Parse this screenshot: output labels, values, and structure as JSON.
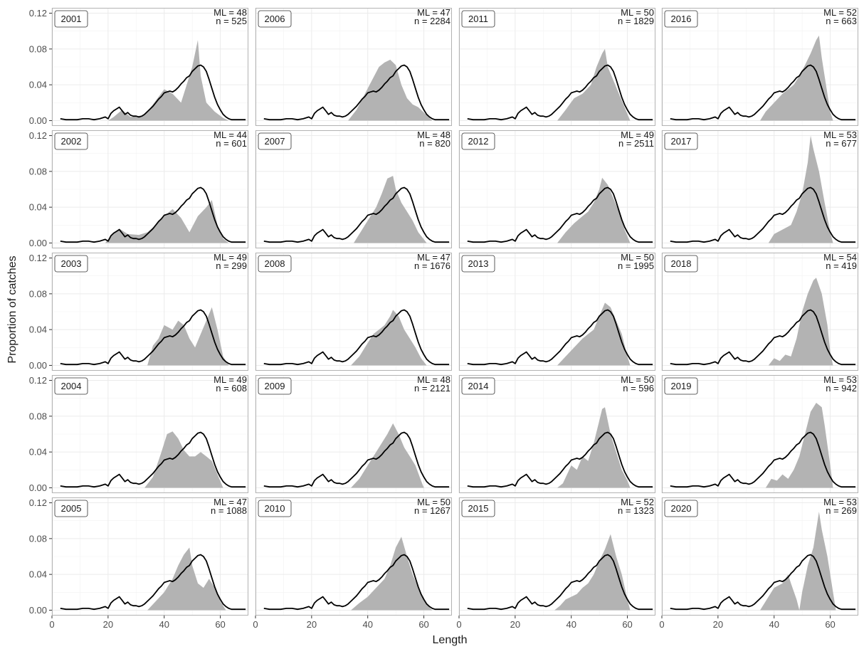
{
  "chart_data": {
    "type": "area",
    "xlabel": "Length",
    "ylabel": "Proportion of catches",
    "xlim": [
      0,
      70
    ],
    "ylim": [
      -0.006,
      0.126
    ],
    "x_ticks": [
      0,
      20,
      40,
      60
    ],
    "x_tick_labels": [
      "0",
      "20",
      "40",
      "60"
    ],
    "y_ticks": [
      0,
      0.04,
      0.08,
      0.12
    ],
    "y_tick_labels": [
      "0.00",
      "0.04",
      "0.08",
      "0.12"
    ],
    "grid": true,
    "legend": "none",
    "colors": {
      "fill": "#b3b3b3",
      "line": "#000000",
      "panel_border": "#b3b3b3",
      "grid": "#ebebeb"
    },
    "reference_line": {
      "x": [
        3,
        5,
        7,
        9,
        11,
        13,
        15,
        17,
        19,
        20,
        21,
        22,
        23,
        24,
        25,
        26,
        27,
        28,
        29,
        30,
        31,
        32,
        33,
        34,
        35,
        36,
        37,
        38,
        39,
        40,
        41,
        42,
        43,
        44,
        45,
        46,
        47,
        48,
        49,
        50,
        51,
        52,
        53,
        54,
        55,
        56,
        57,
        58,
        59,
        60,
        61,
        62,
        63,
        64,
        65,
        66,
        67,
        68,
        69
      ],
      "y": [
        0.002,
        0.001,
        0.001,
        0.001,
        0.002,
        0.002,
        0.001,
        0.002,
        0.004,
        0.002,
        0.008,
        0.011,
        0.013,
        0.015,
        0.011,
        0.007,
        0.009,
        0.006,
        0.005,
        0.005,
        0.004,
        0.005,
        0.007,
        0.01,
        0.013,
        0.016,
        0.02,
        0.024,
        0.027,
        0.031,
        0.032,
        0.033,
        0.032,
        0.034,
        0.037,
        0.041,
        0.044,
        0.048,
        0.05,
        0.055,
        0.058,
        0.061,
        0.062,
        0.06,
        0.055,
        0.046,
        0.036,
        0.026,
        0.018,
        0.012,
        0.007,
        0.004,
        0.002,
        0.001,
        0.001,
        0.001,
        0.001,
        0.001,
        0.001
      ]
    },
    "panels": [
      {
        "year": "2001",
        "ml": "ML = 48",
        "n": "n = 525",
        "start": 20,
        "end": 63,
        "p": [
          [
            22,
            0.004
          ],
          [
            25,
            0.012
          ],
          [
            28,
            0.004
          ],
          [
            33,
            0.006
          ],
          [
            36,
            0.018
          ],
          [
            40,
            0.035
          ],
          [
            43,
            0.03
          ],
          [
            46,
            0.02
          ],
          [
            48,
            0.04
          ],
          [
            50,
            0.06
          ],
          [
            52,
            0.09
          ],
          [
            53,
            0.05
          ],
          [
            55,
            0.02
          ],
          [
            58,
            0.01
          ],
          [
            61,
            0.003
          ]
        ]
      },
      {
        "year": "2002",
        "ml": "ML = 44",
        "n": "n = 601",
        "start": 19,
        "end": 63,
        "p": [
          [
            21,
            0.008
          ],
          [
            24,
            0.016
          ],
          [
            27,
            0.01
          ],
          [
            31,
            0.009
          ],
          [
            34,
            0.012
          ],
          [
            37,
            0.02
          ],
          [
            40,
            0.03
          ],
          [
            43,
            0.038
          ],
          [
            46,
            0.028
          ],
          [
            49,
            0.012
          ],
          [
            52,
            0.03
          ],
          [
            55,
            0.04
          ],
          [
            57,
            0.048
          ],
          [
            59,
            0.02
          ],
          [
            61,
            0.005
          ]
        ]
      },
      {
        "year": "2003",
        "ml": "ML = 49",
        "n": "n = 299",
        "start": 34,
        "end": 63,
        "p": [
          [
            36,
            0.022
          ],
          [
            38,
            0.03
          ],
          [
            40,
            0.045
          ],
          [
            43,
            0.04
          ],
          [
            45,
            0.05
          ],
          [
            47,
            0.045
          ],
          [
            49,
            0.03
          ],
          [
            51,
            0.02
          ],
          [
            53,
            0.035
          ],
          [
            55,
            0.05
          ],
          [
            57,
            0.065
          ],
          [
            59,
            0.04
          ],
          [
            61,
            0.01
          ]
        ]
      },
      {
        "year": "2004",
        "ml": "ML = 49",
        "n": "n = 608",
        "start": 33,
        "end": 61,
        "p": [
          [
            36,
            0.012
          ],
          [
            39,
            0.04
          ],
          [
            41,
            0.06
          ],
          [
            43,
            0.063
          ],
          [
            45,
            0.055
          ],
          [
            47,
            0.042
          ],
          [
            49,
            0.035
          ],
          [
            51,
            0.035
          ],
          [
            53,
            0.04
          ],
          [
            55,
            0.035
          ],
          [
            57,
            0.03
          ],
          [
            59,
            0.015
          ]
        ]
      },
      {
        "year": "2005",
        "ml": "ML = 47",
        "n": "n = 1088",
        "start": 34,
        "end": 62,
        "p": [
          [
            37,
            0.01
          ],
          [
            40,
            0.02
          ],
          [
            43,
            0.035
          ],
          [
            45,
            0.05
          ],
          [
            47,
            0.062
          ],
          [
            49,
            0.07
          ],
          [
            50,
            0.05
          ],
          [
            52,
            0.03
          ],
          [
            54,
            0.025
          ],
          [
            56,
            0.035
          ],
          [
            58,
            0.025
          ],
          [
            60,
            0.01
          ]
        ]
      },
      {
        "year": "2006",
        "ml": "ML = 47",
        "n": "n = 2284",
        "start": 33,
        "end": 63,
        "p": [
          [
            36,
            0.012
          ],
          [
            39,
            0.03
          ],
          [
            42,
            0.048
          ],
          [
            44,
            0.06
          ],
          [
            46,
            0.065
          ],
          [
            48,
            0.068
          ],
          [
            50,
            0.062
          ],
          [
            52,
            0.04
          ],
          [
            54,
            0.025
          ],
          [
            56,
            0.018
          ],
          [
            58,
            0.015
          ],
          [
            61,
            0.006
          ]
        ]
      },
      {
        "year": "2007",
        "ml": "ML = 48",
        "n": "n = 820",
        "start": 35,
        "end": 61,
        "p": [
          [
            37,
            0.01
          ],
          [
            40,
            0.025
          ],
          [
            43,
            0.04
          ],
          [
            45,
            0.055
          ],
          [
            47,
            0.072
          ],
          [
            49,
            0.075
          ],
          [
            50,
            0.06
          ],
          [
            52,
            0.045
          ],
          [
            54,
            0.035
          ],
          [
            56,
            0.025
          ],
          [
            58,
            0.012
          ],
          [
            60,
            0.004
          ]
        ]
      },
      {
        "year": "2008",
        "ml": "ML = 47",
        "n": "n = 1676",
        "start": 34,
        "end": 61,
        "p": [
          [
            37,
            0.01
          ],
          [
            40,
            0.025
          ],
          [
            42,
            0.035
          ],
          [
            44,
            0.04
          ],
          [
            46,
            0.045
          ],
          [
            48,
            0.055
          ],
          [
            49,
            0.062
          ],
          [
            51,
            0.055
          ],
          [
            53,
            0.04
          ],
          [
            55,
            0.03
          ],
          [
            57,
            0.02
          ],
          [
            59,
            0.008
          ]
        ]
      },
      {
        "year": "2009",
        "ml": "ML = 48",
        "n": "n = 2121",
        "start": 34,
        "end": 60,
        "p": [
          [
            37,
            0.01
          ],
          [
            40,
            0.025
          ],
          [
            43,
            0.04
          ],
          [
            45,
            0.05
          ],
          [
            47,
            0.06
          ],
          [
            49,
            0.072
          ],
          [
            51,
            0.06
          ],
          [
            53,
            0.045
          ],
          [
            55,
            0.035
          ],
          [
            57,
            0.025
          ],
          [
            59,
            0.008
          ]
        ]
      },
      {
        "year": "2010",
        "ml": "ML = 50",
        "n": "n = 1267",
        "start": 34,
        "end": 63,
        "p": [
          [
            37,
            0.008
          ],
          [
            40,
            0.015
          ],
          [
            43,
            0.025
          ],
          [
            46,
            0.035
          ],
          [
            48,
            0.05
          ],
          [
            50,
            0.07
          ],
          [
            52,
            0.082
          ],
          [
            54,
            0.06
          ],
          [
            56,
            0.04
          ],
          [
            58,
            0.025
          ],
          [
            60,
            0.012
          ],
          [
            62,
            0.003
          ]
        ]
      },
      {
        "year": "2011",
        "ml": "ML = 50",
        "n": "n = 1829",
        "start": 35,
        "end": 61,
        "p": [
          [
            38,
            0.012
          ],
          [
            41,
            0.025
          ],
          [
            44,
            0.03
          ],
          [
            47,
            0.04
          ],
          [
            49,
            0.06
          ],
          [
            51,
            0.075
          ],
          [
            52,
            0.08
          ],
          [
            53,
            0.06
          ],
          [
            55,
            0.045
          ],
          [
            57,
            0.03
          ],
          [
            59,
            0.015
          ]
        ]
      },
      {
        "year": "2012",
        "ml": "ML = 49",
        "n": "n = 2511",
        "start": 35,
        "end": 61,
        "p": [
          [
            38,
            0.012
          ],
          [
            41,
            0.022
          ],
          [
            44,
            0.03
          ],
          [
            46,
            0.035
          ],
          [
            48,
            0.045
          ],
          [
            50,
            0.06
          ],
          [
            51,
            0.073
          ],
          [
            53,
            0.065
          ],
          [
            55,
            0.05
          ],
          [
            57,
            0.035
          ],
          [
            59,
            0.015
          ]
        ]
      },
      {
        "year": "2013",
        "ml": "ML = 50",
        "n": "n = 1995",
        "start": 35,
        "end": 61,
        "p": [
          [
            38,
            0.01
          ],
          [
            41,
            0.02
          ],
          [
            44,
            0.03
          ],
          [
            46,
            0.035
          ],
          [
            48,
            0.04
          ],
          [
            50,
            0.055
          ],
          [
            52,
            0.07
          ],
          [
            54,
            0.065
          ],
          [
            56,
            0.05
          ],
          [
            58,
            0.035
          ],
          [
            60,
            0.01
          ]
        ]
      },
      {
        "year": "2014",
        "ml": "ML = 50",
        "n": "n = 596",
        "start": 35,
        "end": 61,
        "p": [
          [
            37,
            0.005
          ],
          [
            40,
            0.025
          ],
          [
            42,
            0.02
          ],
          [
            44,
            0.035
          ],
          [
            46,
            0.03
          ],
          [
            48,
            0.05
          ],
          [
            50,
            0.075
          ],
          [
            51,
            0.088
          ],
          [
            52,
            0.09
          ],
          [
            54,
            0.06
          ],
          [
            56,
            0.04
          ],
          [
            58,
            0.02
          ],
          [
            60,
            0.008
          ]
        ]
      },
      {
        "year": "2015",
        "ml": "ML = 52",
        "n": "n = 1323",
        "start": 34,
        "end": 61,
        "p": [
          [
            36,
            0.005
          ],
          [
            38,
            0.012
          ],
          [
            40,
            0.015
          ],
          [
            42,
            0.018
          ],
          [
            44,
            0.025
          ],
          [
            46,
            0.03
          ],
          [
            48,
            0.04
          ],
          [
            50,
            0.055
          ],
          [
            52,
            0.068
          ],
          [
            54,
            0.085
          ],
          [
            56,
            0.06
          ],
          [
            58,
            0.04
          ],
          [
            60,
            0.012
          ]
        ]
      },
      {
        "year": "2016",
        "ml": "ML = 52",
        "n": "n = 663",
        "start": 35,
        "end": 61,
        "p": [
          [
            37,
            0.01
          ],
          [
            40,
            0.02
          ],
          [
            43,
            0.03
          ],
          [
            45,
            0.035
          ],
          [
            47,
            0.04
          ],
          [
            49,
            0.05
          ],
          [
            51,
            0.062
          ],
          [
            53,
            0.075
          ],
          [
            55,
            0.09
          ],
          [
            56,
            0.095
          ],
          [
            57,
            0.07
          ],
          [
            59,
            0.03
          ],
          [
            60,
            0.01
          ]
        ]
      },
      {
        "year": "2017",
        "ml": "ML = 53",
        "n": "n = 677",
        "start": 38,
        "end": 61,
        "p": [
          [
            40,
            0.01
          ],
          [
            43,
            0.015
          ],
          [
            46,
            0.02
          ],
          [
            48,
            0.035
          ],
          [
            50,
            0.055
          ],
          [
            52,
            0.09
          ],
          [
            53,
            0.12
          ],
          [
            54,
            0.105
          ],
          [
            56,
            0.08
          ],
          [
            58,
            0.045
          ],
          [
            60,
            0.012
          ]
        ]
      },
      {
        "year": "2018",
        "ml": "ML = 54",
        "n": "n = 419",
        "start": 38,
        "end": 61,
        "p": [
          [
            40,
            0.008
          ],
          [
            42,
            0.005
          ],
          [
            44,
            0.012
          ],
          [
            46,
            0.01
          ],
          [
            48,
            0.03
          ],
          [
            50,
            0.06
          ],
          [
            52,
            0.08
          ],
          [
            54,
            0.095
          ],
          [
            55,
            0.098
          ],
          [
            57,
            0.08
          ],
          [
            59,
            0.045
          ],
          [
            60,
            0.015
          ]
        ]
      },
      {
        "year": "2019",
        "ml": "ML = 53",
        "n": "n = 942",
        "start": 37,
        "end": 61,
        "p": [
          [
            39,
            0.01
          ],
          [
            41,
            0.008
          ],
          [
            43,
            0.015
          ],
          [
            45,
            0.01
          ],
          [
            47,
            0.02
          ],
          [
            49,
            0.035
          ],
          [
            51,
            0.06
          ],
          [
            53,
            0.085
          ],
          [
            55,
            0.095
          ],
          [
            57,
            0.09
          ],
          [
            58,
            0.07
          ],
          [
            60,
            0.025
          ]
        ]
      },
      {
        "year": "2020",
        "ml": "ML = 53",
        "n": "n = 269",
        "start": 35,
        "end": 62,
        "p": [
          [
            37,
            0.01
          ],
          [
            40,
            0.025
          ],
          [
            43,
            0.03
          ],
          [
            45,
            0.04
          ],
          [
            46,
            0.03
          ],
          [
            48,
            0.012
          ],
          [
            49,
            0.0
          ],
          [
            50,
            0.02
          ],
          [
            52,
            0.05
          ],
          [
            54,
            0.07
          ],
          [
            56,
            0.11
          ],
          [
            57,
            0.09
          ],
          [
            59,
            0.06
          ],
          [
            61,
            0.02
          ]
        ]
      }
    ]
  }
}
